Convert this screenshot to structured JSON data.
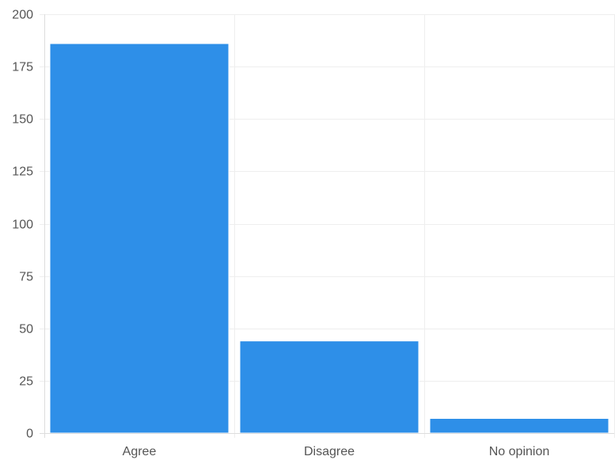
{
  "chart_data": {
    "type": "bar",
    "categories": [
      "Agree",
      "Disagree",
      "No opinion"
    ],
    "values": [
      186,
      44,
      7
    ],
    "ylim": [
      0,
      200
    ],
    "yticks": [
      0,
      25,
      50,
      75,
      100,
      125,
      150,
      175,
      200
    ],
    "grid": true,
    "legend": "none",
    "colors": {
      "bar": "#2e8fe8",
      "grid": "#eeeeee",
      "axis": "#dddddd",
      "tick_text": "#555555"
    }
  }
}
